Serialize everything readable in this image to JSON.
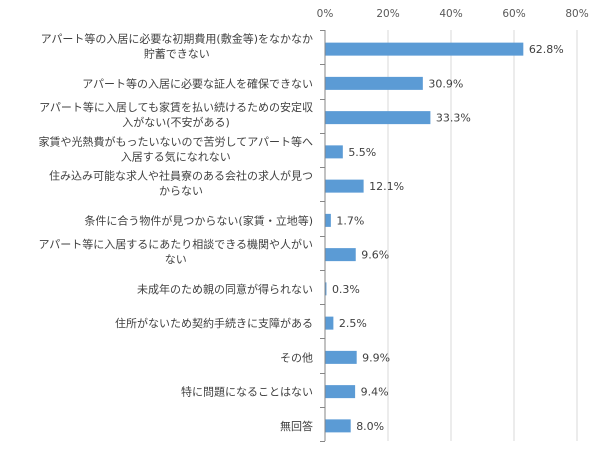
{
  "chart_data": {
    "type": "bar",
    "orientation": "horizontal",
    "title": "",
    "xlabel": "",
    "ylabel": "",
    "xlim": [
      0,
      80
    ],
    "x_ticks": [
      "0%",
      "20%",
      "40%",
      "60%",
      "80%"
    ],
    "grid": true,
    "legend": "none",
    "bar_color": "#5B9BD5",
    "categories": [
      [
        "アパート等の入居に必要な初期費用(敷金等)をなかなか",
        "貯蓄できない"
      ],
      [
        "アパート等の入居に必要な証人を確保できない"
      ],
      [
        "アパート等に入居しても家賃を払い続けるための安定収",
        "入がない(不安がある)"
      ],
      [
        "家賃や光熱費がもったいないので苦労してアパート等へ",
        "入居する気になれない"
      ],
      [
        "住み込み可能な求人や社員寮のある会社の求人が見つ",
        "からない"
      ],
      [
        "条件に合う物件が見つからない(家賃・立地等)"
      ],
      [
        "アパート等に入居するにあたり相談できる機関や人がい",
        "ない"
      ],
      [
        "未成年のため親の同意が得られない"
      ],
      [
        "住所がないため契約手続きに支障がある"
      ],
      [
        "その他"
      ],
      [
        "特に問題になることはない"
      ],
      [
        "無回答"
      ]
    ],
    "values": [
      62.8,
      30.9,
      33.3,
      5.5,
      12.1,
      1.7,
      9.6,
      0.3,
      2.5,
      9.9,
      9.4,
      8.0
    ],
    "value_labels": [
      "62.8%",
      "30.9%",
      "33.3%",
      "5.5%",
      "12.1%",
      "1.7%",
      "9.6%",
      "0.3%",
      "2.5%",
      "9.9%",
      "9.4%",
      "8.0%"
    ]
  }
}
